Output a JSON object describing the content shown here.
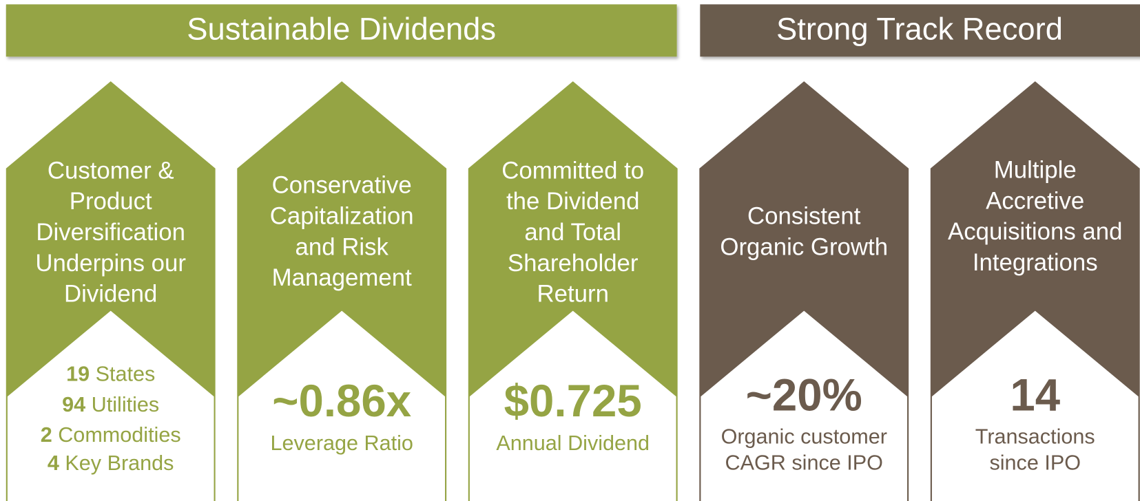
{
  "sections": [
    {
      "title": "Sustainable Dividends",
      "pillars": [
        {
          "title_lines": [
            "Customer &",
            "Product",
            "Diversification",
            "Underpins our",
            "Dividend"
          ],
          "stats": [
            {
              "number": "19",
              "label": "States"
            },
            {
              "number": "94",
              "label": "Utilities"
            },
            {
              "number": "2",
              "label": "Commodities"
            },
            {
              "number": "4",
              "label": "Key Brands"
            }
          ]
        },
        {
          "title_lines": [
            "Conservative",
            "Capitalization",
            "and Risk",
            "Management"
          ],
          "highlight": "~0.86x",
          "caption_lines": [
            "Leverage Ratio"
          ]
        },
        {
          "title_lines": [
            "Committed to",
            "the Dividend",
            "and Total",
            "Shareholder",
            "Return"
          ],
          "highlight": "$0.725",
          "caption_lines": [
            "Annual Dividend"
          ]
        }
      ]
    },
    {
      "title": "Strong Track Record",
      "pillars": [
        {
          "title_lines": [
            "Consistent",
            "Organic Growth"
          ],
          "highlight": "~20%",
          "caption_lines": [
            "Organic customer",
            "CAGR since IPO"
          ]
        },
        {
          "title_lines": [
            "Multiple",
            "Accretive",
            "Acquisitions and",
            "Integrations"
          ],
          "highlight": "14",
          "caption_lines": [
            "Transactions",
            "since IPO"
          ]
        }
      ]
    }
  ]
}
